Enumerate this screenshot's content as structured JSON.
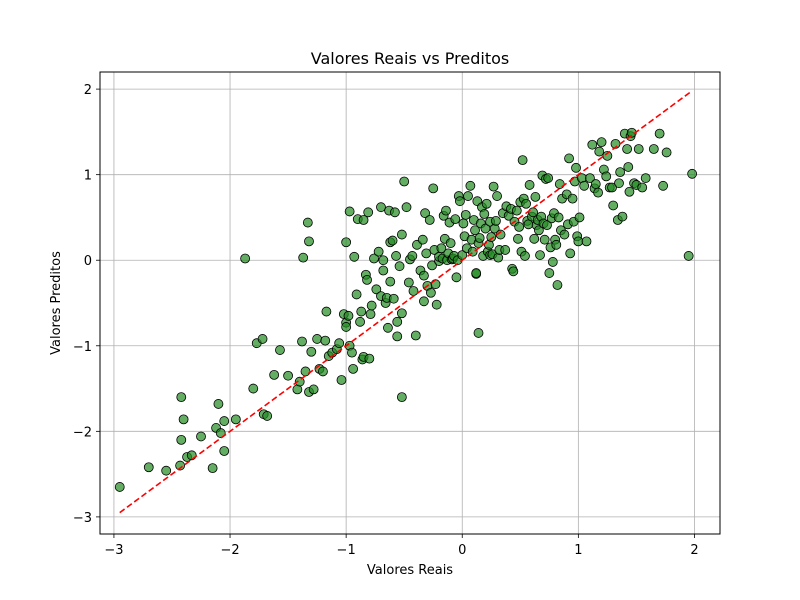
{
  "chart_data": {
    "type": "scatter",
    "title": "Valores Reais vs Preditos",
    "xlabel": "Valores Reais",
    "ylabel": "Valores Preditos",
    "xlim": [
      -3.12,
      2.22
    ],
    "ylim": [
      -3.2,
      2.2
    ],
    "xticks": [
      -3,
      -2,
      -1,
      0,
      1,
      2
    ],
    "yticks": [
      -3,
      -2,
      -1,
      0,
      1,
      2
    ],
    "xtick_labels": [
      "−3",
      "−2",
      "−1",
      "0",
      "1",
      "2"
    ],
    "ytick_labels": [
      "−3",
      "−2",
      "−1",
      "0",
      "1",
      "2"
    ],
    "grid": true,
    "colors": {
      "point_fill": "#228b22",
      "point_edge": "#000000",
      "reference_line": "#ff0000",
      "grid": "#b0b0b0"
    },
    "reference_line": {
      "style": "dashed",
      "from": [
        -2.95,
        -2.95
      ],
      "to": [
        1.97,
        1.97
      ]
    },
    "points": [
      [
        -2.95,
        -2.65
      ],
      [
        -2.7,
        -2.42
      ],
      [
        -2.55,
        -2.46
      ],
      [
        -2.43,
        -2.4
      ],
      [
        -2.42,
        -1.6
      ],
      [
        -2.42,
        -2.1
      ],
      [
        -2.4,
        -1.86
      ],
      [
        -2.37,
        -2.3
      ],
      [
        -2.33,
        -2.28
      ],
      [
        -2.25,
        -2.06
      ],
      [
        -2.15,
        -2.43
      ],
      [
        -2.12,
        -1.96
      ],
      [
        -2.1,
        -1.68
      ],
      [
        -2.08,
        -2.02
      ],
      [
        -2.05,
        -1.88
      ],
      [
        -2.05,
        -2.23
      ],
      [
        -1.95,
        -1.86
      ],
      [
        -1.87,
        0.02
      ],
      [
        -1.8,
        -1.5
      ],
      [
        -1.77,
        -0.97
      ],
      [
        -1.72,
        -0.92
      ],
      [
        -1.71,
        -1.8
      ],
      [
        -1.68,
        -1.82
      ],
      [
        -1.62,
        -1.34
      ],
      [
        -1.57,
        -1.05
      ],
      [
        -1.5,
        -1.35
      ],
      [
        -1.42,
        -1.51
      ],
      [
        -1.4,
        -1.42
      ],
      [
        -1.38,
        -0.95
      ],
      [
        -1.37,
        0.03
      ],
      [
        -1.35,
        -1.3
      ],
      [
        -1.33,
        0.44
      ],
      [
        -1.32,
        0.22
      ],
      [
        -1.32,
        -1.54
      ],
      [
        -1.3,
        -1.07
      ],
      [
        -1.28,
        -1.51
      ],
      [
        -1.25,
        -0.92
      ],
      [
        -1.23,
        -1.27
      ],
      [
        -1.2,
        -1.3
      ],
      [
        -1.18,
        -0.94
      ],
      [
        -1.17,
        -0.6
      ],
      [
        -1.15,
        -1.12
      ],
      [
        -1.12,
        -1.08
      ],
      [
        -1.08,
        -1.04
      ],
      [
        -1.06,
        -0.97
      ],
      [
        -1.04,
        -1.4
      ],
      [
        -1.02,
        -0.63
      ],
      [
        -1.0,
        -0.73
      ],
      [
        -1.0,
        -0.78
      ],
      [
        -1.0,
        0.21
      ],
      [
        -0.98,
        -0.65
      ],
      [
        -0.97,
        0.57
      ],
      [
        -0.97,
        -1.0
      ],
      [
        -0.95,
        -1.08
      ],
      [
        -0.94,
        -1.27
      ],
      [
        -0.93,
        0.04
      ],
      [
        -0.91,
        -0.4
      ],
      [
        -0.9,
        0.48
      ],
      [
        -0.88,
        -0.72
      ],
      [
        -0.87,
        -0.6
      ],
      [
        -0.86,
        -1.16
      ],
      [
        -0.85,
        0.47
      ],
      [
        -0.85,
        -1.13
      ],
      [
        -0.83,
        -0.17
      ],
      [
        -0.82,
        -0.23
      ],
      [
        -0.81,
        0.56
      ],
      [
        -0.8,
        -1.15
      ],
      [
        -0.79,
        -0.63
      ],
      [
        -0.78,
        -0.53
      ],
      [
        -0.76,
        0.02
      ],
      [
        -0.74,
        -0.34
      ],
      [
        -0.72,
        0.1
      ],
      [
        -0.7,
        -0.42
      ],
      [
        -0.7,
        0.62
      ],
      [
        -0.68,
        0.0
      ],
      [
        -0.68,
        -0.12
      ],
      [
        -0.66,
        -0.5
      ],
      [
        -0.65,
        -0.44
      ],
      [
        -0.64,
        -0.79
      ],
      [
        -0.63,
        0.58
      ],
      [
        -0.62,
        0.21
      ],
      [
        -0.62,
        -0.25
      ],
      [
        -0.6,
        0.23
      ],
      [
        -0.59,
        -0.45
      ],
      [
        -0.58,
        0.56
      ],
      [
        -0.57,
        0.05
      ],
      [
        -0.56,
        -0.89
      ],
      [
        -0.56,
        -0.72
      ],
      [
        -0.54,
        -0.07
      ],
      [
        -0.52,
        -1.6
      ],
      [
        -0.52,
        0.3
      ],
      [
        -0.52,
        -0.62
      ],
      [
        -0.5,
        0.92
      ],
      [
        -0.48,
        0.62
      ],
      [
        -0.46,
        -0.26
      ],
      [
        -0.45,
        0.01
      ],
      [
        -0.43,
        0.05
      ],
      [
        -0.42,
        -0.36
      ],
      [
        -0.4,
        -0.88
      ],
      [
        -0.39,
        0.18
      ],
      [
        -0.36,
        -0.12
      ],
      [
        -0.34,
        0.24
      ],
      [
        -0.33,
        -0.48
      ],
      [
        -0.33,
        -0.18
      ],
      [
        -0.32,
        0.55
      ],
      [
        -0.31,
        0.08
      ],
      [
        -0.3,
        -0.3
      ],
      [
        -0.28,
        0.47
      ],
      [
        -0.27,
        -0.38
      ],
      [
        -0.26,
        -0.06
      ],
      [
        -0.25,
        0.84
      ],
      [
        -0.24,
        0.12
      ],
      [
        -0.23,
        -0.28
      ],
      [
        -0.22,
        -0.52
      ],
      [
        -0.2,
        -0.01
      ],
      [
        -0.2,
        0.04
      ],
      [
        -0.18,
        0.14
      ],
      [
        -0.17,
        0.02
      ],
      [
        -0.16,
        0.52
      ],
      [
        -0.15,
        0.25
      ],
      [
        -0.14,
        0.58
      ],
      [
        -0.13,
        0.0
      ],
      [
        -0.12,
        0.08
      ],
      [
        -0.11,
        0.44
      ],
      [
        -0.1,
        0.2
      ],
      [
        -0.09,
        0.01
      ],
      [
        -0.08,
        0.02
      ],
      [
        -0.07,
        0.05
      ],
      [
        -0.06,
        0.48
      ],
      [
        -0.05,
        -0.2
      ],
      [
        -0.04,
        0.0
      ],
      [
        -0.03,
        0.75
      ],
      [
        -0.02,
        0.69
      ],
      [
        0.0,
        0.06
      ],
      [
        0.01,
        0.43
      ],
      [
        0.02,
        0.28
      ],
      [
        0.03,
        0.53
      ],
      [
        0.04,
        0.14
      ],
      [
        0.05,
        0.75
      ],
      [
        0.07,
        0.87
      ],
      [
        0.08,
        0.24
      ],
      [
        0.09,
        0.1
      ],
      [
        0.1,
        0.47
      ],
      [
        0.11,
        0.35
      ],
      [
        0.12,
        -0.16
      ],
      [
        0.12,
        -0.15
      ],
      [
        0.13,
        0.69
      ],
      [
        0.14,
        -0.85
      ],
      [
        0.14,
        0.2
      ],
      [
        0.15,
        0.26
      ],
      [
        0.16,
        0.43
      ],
      [
        0.17,
        0.62
      ],
      [
        0.18,
        0.05
      ],
      [
        0.19,
        0.54
      ],
      [
        0.2,
        0.37
      ],
      [
        0.21,
        0.66
      ],
      [
        0.22,
        0.1
      ],
      [
        0.23,
        0.18
      ],
      [
        0.24,
        0.06
      ],
      [
        0.24,
        0.45
      ],
      [
        0.25,
        0.27
      ],
      [
        0.26,
        0.07
      ],
      [
        0.27,
        0.86
      ],
      [
        0.28,
        0.37
      ],
      [
        0.29,
        0.46
      ],
      [
        0.3,
        0.75
      ],
      [
        0.31,
        0.03
      ],
      [
        0.32,
        0.12
      ],
      [
        0.33,
        0.3
      ],
      [
        0.35,
        0.55
      ],
      [
        0.37,
        0.12
      ],
      [
        0.38,
        0.63
      ],
      [
        0.4,
        0.52
      ],
      [
        0.42,
        0.6
      ],
      [
        0.43,
        -0.1
      ],
      [
        0.44,
        -0.13
      ],
      [
        0.45,
        0.45
      ],
      [
        0.47,
        0.58
      ],
      [
        0.48,
        0.25
      ],
      [
        0.49,
        0.39
      ],
      [
        0.5,
        0.68
      ],
      [
        0.51,
        0.1
      ],
      [
        0.52,
        1.17
      ],
      [
        0.53,
        0.72
      ],
      [
        0.54,
        0.05
      ],
      [
        0.55,
        0.66
      ],
      [
        0.56,
        0.46
      ],
      [
        0.57,
        0.42
      ],
      [
        0.58,
        0.88
      ],
      [
        0.6,
        0.51
      ],
      [
        0.61,
        0.56
      ],
      [
        0.62,
        0.25
      ],
      [
        0.63,
        0.74
      ],
      [
        0.64,
        0.41
      ],
      [
        0.65,
        0.47
      ],
      [
        0.66,
        0.35
      ],
      [
        0.67,
        0.06
      ],
      [
        0.68,
        0.51
      ],
      [
        0.69,
        0.99
      ],
      [
        0.7,
        0.43
      ],
      [
        0.71,
        0.24
      ],
      [
        0.72,
        0.95
      ],
      [
        0.73,
        0.41
      ],
      [
        0.74,
        0.96
      ],
      [
        0.75,
        -0.15
      ],
      [
        0.76,
        0.15
      ],
      [
        0.77,
        0.49
      ],
      [
        0.78,
        -0.02
      ],
      [
        0.79,
        0.55
      ],
      [
        0.8,
        0.24
      ],
      [
        0.81,
        0.18
      ],
      [
        0.82,
        -0.29
      ],
      [
        0.83,
        0.5
      ],
      [
        0.84,
        0.89
      ],
      [
        0.85,
        0.35
      ],
      [
        0.86,
        0.72
      ],
      [
        0.88,
        0.3
      ],
      [
        0.9,
        0.77
      ],
      [
        0.91,
        0.42
      ],
      [
        0.92,
        1.19
      ],
      [
        0.93,
        0.08
      ],
      [
        0.95,
        0.72
      ],
      [
        0.96,
        0.45
      ],
      [
        0.97,
        0.92
      ],
      [
        0.98,
        1.08
      ],
      [
        0.99,
        0.28
      ],
      [
        1.0,
        0.22
      ],
      [
        1.01,
        0.5
      ],
      [
        1.03,
        0.96
      ],
      [
        1.05,
        0.87
      ],
      [
        1.07,
        0.22
      ],
      [
        1.1,
        0.96
      ],
      [
        1.12,
        1.35
      ],
      [
        1.14,
        0.84
      ],
      [
        1.15,
        0.89
      ],
      [
        1.17,
        0.79
      ],
      [
        1.18,
        1.27
      ],
      [
        1.2,
        1.38
      ],
      [
        1.22,
        1.06
      ],
      [
        1.24,
        0.98
      ],
      [
        1.25,
        1.22
      ],
      [
        1.27,
        0.85
      ],
      [
        1.29,
        0.85
      ],
      [
        1.3,
        0.64
      ],
      [
        1.32,
        1.36
      ],
      [
        1.34,
        0.47
      ],
      [
        1.35,
        0.9
      ],
      [
        1.36,
        1.03
      ],
      [
        1.38,
        0.51
      ],
      [
        1.4,
        1.48
      ],
      [
        1.42,
        1.3
      ],
      [
        1.43,
        1.09
      ],
      [
        1.44,
        0.8
      ],
      [
        1.45,
        1.45
      ],
      [
        1.46,
        1.49
      ],
      [
        1.48,
        0.9
      ],
      [
        1.5,
        0.88
      ],
      [
        1.52,
        1.3
      ],
      [
        1.55,
        0.85
      ],
      [
        1.58,
        0.96
      ],
      [
        1.65,
        1.3
      ],
      [
        1.7,
        1.48
      ],
      [
        1.73,
        0.87
      ],
      [
        1.76,
        1.26
      ],
      [
        1.95,
        0.05
      ],
      [
        1.98,
        1.01
      ]
    ]
  }
}
